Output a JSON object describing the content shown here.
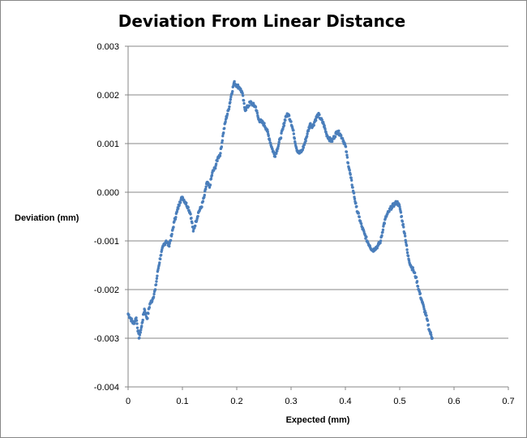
{
  "chart_data": {
    "type": "scatter",
    "title": "Deviation From Linear Distance",
    "xlabel": "Expected (mm)",
    "ylabel": "Deviation (mm)",
    "xlim": [
      0,
      0.7
    ],
    "ylim": [
      -0.004,
      0.003
    ],
    "x_ticks": [
      "0",
      "0.1",
      "0.2",
      "0.3",
      "0.4",
      "0.5",
      "0.6",
      "0.7"
    ],
    "y_ticks": [
      "0.003",
      "0.002",
      "0.001",
      "0.000",
      "-0.001",
      "-0.002",
      "-0.003",
      "-0.004"
    ],
    "grid": "horizontal",
    "legend": "none",
    "marker_color": "#4a7ebb",
    "series": [
      {
        "points": [
          [
            0.0,
            -0.0025
          ],
          [
            0.005,
            -0.0026
          ],
          [
            0.01,
            -0.0027
          ],
          [
            0.015,
            -0.00258
          ],
          [
            0.02,
            -0.003
          ],
          [
            0.025,
            -0.00275
          ],
          [
            0.03,
            -0.0024
          ],
          [
            0.035,
            -0.0026
          ],
          [
            0.04,
            -0.0023
          ],
          [
            0.045,
            -0.0022
          ],
          [
            0.05,
            -0.002
          ],
          [
            0.055,
            -0.0016
          ],
          [
            0.06,
            -0.0013
          ],
          [
            0.065,
            -0.0011
          ],
          [
            0.07,
            -0.001
          ],
          [
            0.075,
            -0.0011
          ],
          [
            0.08,
            -0.0009
          ],
          [
            0.085,
            -0.0006
          ],
          [
            0.09,
            -0.0004
          ],
          [
            0.095,
            -0.0002
          ],
          [
            0.1,
            -0.0001
          ],
          [
            0.105,
            -0.0002
          ],
          [
            0.11,
            -0.0003
          ],
          [
            0.115,
            -0.00045
          ],
          [
            0.12,
            -0.0008
          ],
          [
            0.125,
            -0.0006
          ],
          [
            0.13,
            -0.0004
          ],
          [
            0.135,
            -0.0003
          ],
          [
            0.14,
            -0.0001
          ],
          [
            0.145,
            0.0002
          ],
          [
            0.15,
            0.0001
          ],
          [
            0.155,
            0.0004
          ],
          [
            0.16,
            0.0005
          ],
          [
            0.165,
            0.0007
          ],
          [
            0.17,
            0.0008
          ],
          [
            0.175,
            0.0012
          ],
          [
            0.18,
            0.0015
          ],
          [
            0.185,
            0.0017
          ],
          [
            0.19,
            0.002
          ],
          [
            0.195,
            0.00225
          ],
          [
            0.2,
            0.0022
          ],
          [
            0.205,
            0.00215
          ],
          [
            0.21,
            0.00205
          ],
          [
            0.215,
            0.0017
          ],
          [
            0.22,
            0.00175
          ],
          [
            0.225,
            0.00185
          ],
          [
            0.23,
            0.0018
          ],
          [
            0.235,
            0.00175
          ],
          [
            0.24,
            0.0015
          ],
          [
            0.245,
            0.00145
          ],
          [
            0.25,
            0.0014
          ],
          [
            0.255,
            0.0013
          ],
          [
            0.26,
            0.0011
          ],
          [
            0.265,
            0.0009
          ],
          [
            0.27,
            0.00075
          ],
          [
            0.275,
            0.0009
          ],
          [
            0.28,
            0.0011
          ],
          [
            0.285,
            0.0013
          ],
          [
            0.29,
            0.00155
          ],
          [
            0.295,
            0.0016
          ],
          [
            0.3,
            0.00145
          ],
          [
            0.305,
            0.0012
          ],
          [
            0.31,
            0.0009
          ],
          [
            0.315,
            0.0008
          ],
          [
            0.32,
            0.00085
          ],
          [
            0.325,
            0.001
          ],
          [
            0.33,
            0.0012
          ],
          [
            0.335,
            0.0014
          ],
          [
            0.34,
            0.00135
          ],
          [
            0.345,
            0.0015
          ],
          [
            0.35,
            0.0016
          ],
          [
            0.355,
            0.0015
          ],
          [
            0.36,
            0.0014
          ],
          [
            0.365,
            0.0012
          ],
          [
            0.37,
            0.0011
          ],
          [
            0.375,
            0.00105
          ],
          [
            0.38,
            0.00115
          ],
          [
            0.385,
            0.00125
          ],
          [
            0.39,
            0.0012
          ],
          [
            0.395,
            0.0011
          ],
          [
            0.4,
            0.00095
          ],
          [
            0.405,
            0.0006
          ],
          [
            0.41,
            0.0003
          ],
          [
            0.415,
            0.0
          ],
          [
            0.42,
            -0.0003
          ],
          [
            0.425,
            -0.0005
          ],
          [
            0.43,
            -0.0007
          ],
          [
            0.435,
            -0.00085
          ],
          [
            0.44,
            -0.001
          ],
          [
            0.445,
            -0.0011
          ],
          [
            0.45,
            -0.0012
          ],
          [
            0.455,
            -0.00115
          ],
          [
            0.46,
            -0.0011
          ],
          [
            0.465,
            -0.001
          ],
          [
            0.47,
            -0.0007
          ],
          [
            0.475,
            -0.0005
          ],
          [
            0.48,
            -0.0004
          ],
          [
            0.485,
            -0.0003
          ],
          [
            0.49,
            -0.00025
          ],
          [
            0.495,
            -0.0002
          ],
          [
            0.5,
            -0.0003
          ],
          [
            0.505,
            -0.0006
          ],
          [
            0.51,
            -0.0009
          ],
          [
            0.515,
            -0.0013
          ],
          [
            0.52,
            -0.0015
          ],
          [
            0.525,
            -0.0016
          ],
          [
            0.53,
            -0.00175
          ],
          [
            0.535,
            -0.002
          ],
          [
            0.54,
            -0.0022
          ],
          [
            0.545,
            -0.0024
          ],
          [
            0.55,
            -0.0026
          ],
          [
            0.555,
            -0.00285
          ],
          [
            0.56,
            -0.003
          ]
        ]
      }
    ]
  }
}
